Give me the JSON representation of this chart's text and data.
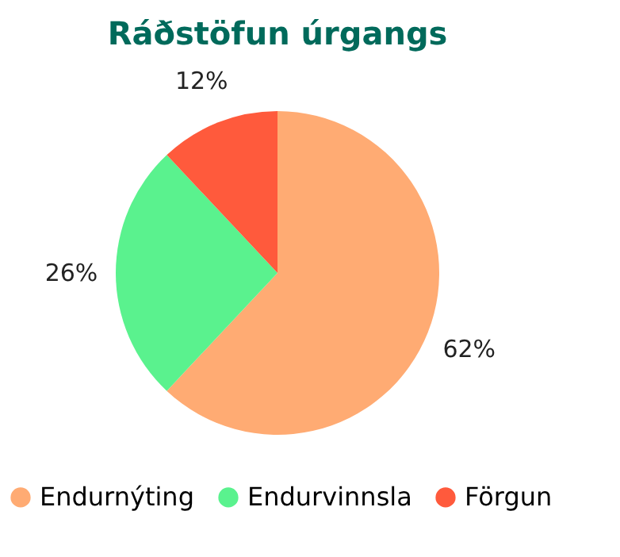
{
  "chart_data": {
    "type": "pie",
    "title": "Ráðstöfun úrgangs",
    "categories": [
      "Endurnýting",
      "Endurvinnsla",
      "Förgun"
    ],
    "values": [
      62,
      26,
      12
    ],
    "colors": [
      "#ffab73",
      "#5af28e",
      "#ff5a3c"
    ],
    "value_labels": [
      "62%",
      "26%",
      "12%"
    ],
    "legend": "bottom"
  }
}
